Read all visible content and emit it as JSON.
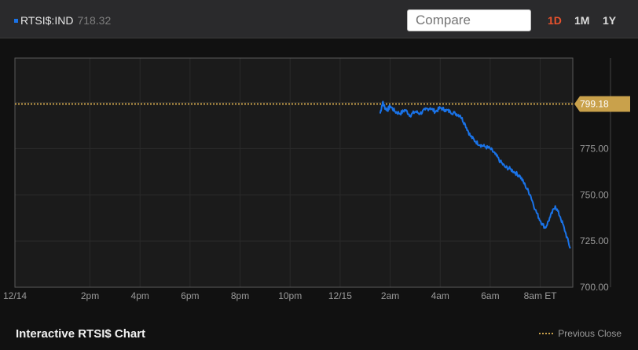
{
  "header": {
    "ticker": "RTSI$:IND",
    "last_price": "718.32",
    "compare_placeholder": "Compare",
    "ranges": [
      "1D",
      "1M",
      "1Y"
    ],
    "active_range": "1D"
  },
  "colors": {
    "series": "#1a73e8",
    "previous_close": "#c9a14b",
    "active_range": "#e8522d"
  },
  "chart_data": {
    "type": "line",
    "title": "Interactive RTSI$ Chart",
    "ylim": [
      700,
      824
    ],
    "ytick_labels": [
      "700.00",
      "725.00",
      "750.00",
      "775.00"
    ],
    "ytick_values": [
      700,
      725,
      750,
      775
    ],
    "xtick_labels": [
      "12/14",
      "2pm",
      "4pm",
      "6pm",
      "8pm",
      "10pm",
      "12/15",
      "2am",
      "4am",
      "6am",
      "8am ET"
    ],
    "xlim": [
      11,
      33.3
    ],
    "xtick_hours": [
      11,
      14,
      16,
      18,
      20,
      22,
      24,
      26,
      28,
      30,
      32
    ],
    "grid": true,
    "previous_close": {
      "value": 799.18,
      "label": "799.18"
    },
    "legend": {
      "label": "Previous Close",
      "placement": "bottom-right"
    },
    "series": [
      {
        "x": [
          25.6,
          25.7,
          25.8,
          25.9,
          26.0,
          26.2,
          26.4,
          26.6,
          26.8,
          27.0,
          27.2,
          27.4,
          27.6,
          27.8,
          28.0,
          28.2,
          28.4,
          28.6,
          28.8,
          29.0,
          29.2,
          29.4,
          29.6,
          29.8,
          30.0,
          30.2,
          30.4,
          30.6,
          30.8,
          31.0,
          31.2,
          31.4,
          31.6,
          31.8,
          32.0,
          32.2,
          32.4,
          32.6,
          32.8,
          33.0,
          33.2
        ],
        "y": [
          794,
          800,
          797,
          796,
          798,
          795,
          794,
          796,
          793,
          795,
          794,
          796,
          797,
          795,
          797,
          796,
          795,
          794,
          793,
          788,
          782,
          779,
          777,
          776,
          775,
          772,
          768,
          765,
          764,
          762,
          760,
          755,
          750,
          742,
          736,
          732,
          738,
          744,
          738,
          730,
          721
        ]
      }
    ]
  }
}
